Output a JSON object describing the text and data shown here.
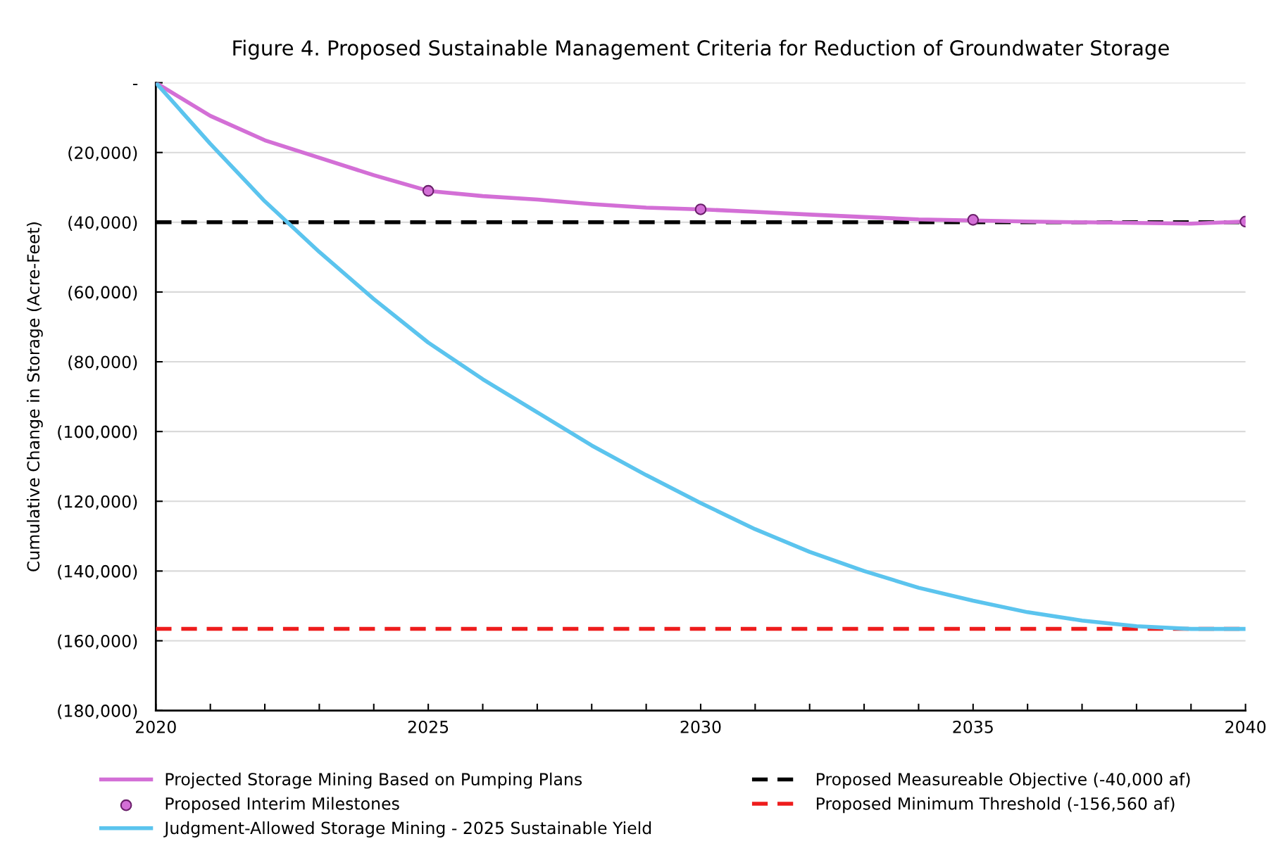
{
  "chart_data": {
    "type": "line",
    "title": "Figure 4. Proposed Sustainable Management Criteria for Reduction of Groundwater Storage",
    "ylabel": "Cumulative Change in Storage (Acre-Feet)",
    "x": [
      2020,
      2021,
      2022,
      2023,
      2024,
      2025,
      2026,
      2027,
      2028,
      2029,
      2030,
      2031,
      2032,
      2033,
      2034,
      2035,
      2036,
      2037,
      2038,
      2039,
      2040
    ],
    "series": [
      {
        "name": "Projected Storage Mining Based on Pumping Plans",
        "color": "#d36fd6",
        "marker": "none",
        "values": [
          0,
          -9500,
          -16500,
          -21500,
          -26500,
          -31000,
          -32500,
          -33500,
          -34800,
          -35800,
          -36300,
          -37000,
          -37800,
          -38500,
          -39200,
          -39500,
          -39800,
          -40000,
          -40200,
          -40400,
          -39800
        ]
      },
      {
        "name": "Proposed Interim Milestones",
        "type": "scatter",
        "color": "#d36fd6",
        "marker": "circle",
        "x": [
          2025,
          2030,
          2035,
          2040
        ],
        "values": [
          -31000,
          -36300,
          -39300,
          -39800
        ]
      },
      {
        "name": "Judgment-Allowed Storage Mining - 2025 Sustainable Yield",
        "color": "#5bc4ee",
        "marker": "none",
        "values": [
          0,
          -17500,
          -34000,
          -48500,
          -62000,
          -74500,
          -85000,
          -94500,
          -104000,
          -112500,
          -120500,
          -128000,
          -134500,
          -140000,
          -144800,
          -148500,
          -151800,
          -154200,
          -155800,
          -156600,
          -156600
        ]
      }
    ],
    "ref_lines": [
      {
        "axis": "y",
        "value": -40000,
        "label": "Proposed Measureable Objective (-40,000 af)",
        "color": "#000000",
        "line_style": "dashed"
      },
      {
        "axis": "y",
        "value": -156560,
        "label": "Proposed Minimum Threshold (-156,560 af)",
        "color": "#ee1c1c",
        "line_style": "dashed"
      }
    ],
    "xlim": [
      2020,
      2040
    ],
    "xticks": [
      2020,
      {
        "value": 2021,
        "label": null
      },
      {
        "value": 2022,
        "label": null
      },
      {
        "value": 2023,
        "label": null
      },
      {
        "value": 2024,
        "label": null
      },
      2025,
      {
        "value": 2026,
        "label": null
      },
      {
        "value": 2027,
        "label": null
      },
      {
        "value": 2028,
        "label": null
      },
      {
        "value": 2029,
        "label": null
      },
      2030,
      {
        "value": 2031,
        "label": null
      },
      {
        "value": 2032,
        "label": null
      },
      {
        "value": 2033,
        "label": null
      },
      {
        "value": 2034,
        "label": null
      },
      2035,
      {
        "value": 2036,
        "label": null
      },
      {
        "value": 2037,
        "label": null
      },
      {
        "value": 2038,
        "label": null
      },
      {
        "value": 2039,
        "label": null
      },
      2040
    ],
    "ylim": [
      -180000,
      0
    ],
    "yticks": [
      {
        "value": 0,
        "label": "-"
      },
      {
        "value": -20000,
        "label": "(20,000)"
      },
      {
        "value": -40000,
        "label": "(40,000)"
      },
      {
        "value": -60000,
        "label": "(60,000)"
      },
      {
        "value": -80000,
        "label": "(80,000)"
      },
      {
        "value": -100000,
        "label": "(100,000)"
      },
      {
        "value": -120000,
        "label": "(120,000)"
      },
      {
        "value": -140000,
        "label": "(140,000)"
      },
      {
        "value": -160000,
        "label": "(160,000)"
      },
      {
        "value": -180000,
        "label": "(180,000)"
      }
    ],
    "grid": "y",
    "legend": "bottom"
  }
}
